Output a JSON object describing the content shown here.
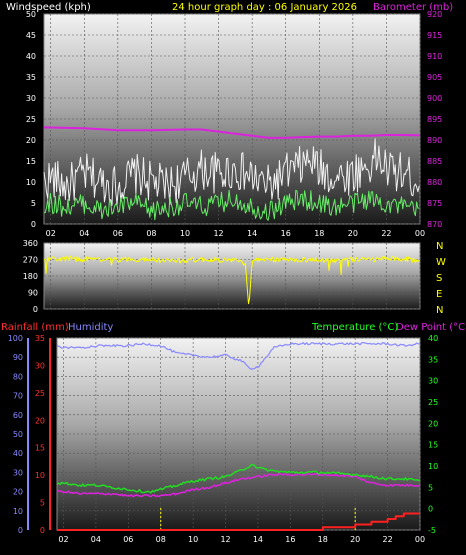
{
  "header": {
    "left_label": "Windspeed (kph)",
    "center_label": "24 hour graph day : 06 January 2026",
    "right_label": "Barometer (mb)"
  },
  "colors": {
    "wind_gust": "#f2f2f2",
    "wind_avg": "#66ee66",
    "barometer": "#dd22dd",
    "direction": "#ffff00",
    "rain": "#ff2020",
    "humidity": "#8888ff",
    "temperature": "#22dd22",
    "dewpoint": "#dd22dd",
    "axis_text_left": "#ffffff",
    "axis_text_rain": "#ff3030",
    "axis_text_hum": "#8888ff",
    "axis_text_temp": "#22ff22"
  },
  "x_axis": {
    "hours": [
      2,
      4,
      6,
      8,
      10,
      12,
      14,
      16,
      18,
      20,
      22,
      24
    ],
    "tick_labels": [
      "02",
      "04",
      "06",
      "08",
      "10",
      "12",
      "14",
      "16",
      "18",
      "20",
      "22",
      "00"
    ]
  },
  "chart_data": [
    {
      "type": "line",
      "name": "wind",
      "x_range": [
        1.6,
        24
      ],
      "y_left": {
        "ticks": [
          0,
          5,
          10,
          15,
          20,
          25,
          30,
          35,
          40,
          45,
          50
        ],
        "range": [
          0,
          50
        ]
      },
      "y_right": {
        "ticks": [
          870,
          875,
          880,
          885,
          890,
          895,
          900,
          905,
          910,
          915,
          920
        ],
        "range": [
          870,
          920
        ]
      },
      "series": [
        {
          "key": "gust",
          "axis": "left",
          "x": [
            1.6,
            2,
            3,
            4,
            5,
            6,
            7,
            8,
            9,
            10,
            11,
            12,
            13,
            14,
            15,
            16,
            17,
            17.5,
            18,
            19,
            20,
            21,
            21.5,
            22,
            23,
            24
          ],
          "y": [
            10,
            11,
            9,
            12,
            10,
            9,
            12,
            10,
            9,
            11,
            13,
            12,
            13,
            11,
            9,
            12,
            14,
            15,
            13,
            11,
            12,
            14,
            16,
            13,
            12,
            10
          ]
        },
        {
          "key": "average",
          "axis": "left",
          "x": [
            1.6,
            2,
            3,
            4,
            5,
            6,
            7,
            8,
            9,
            10,
            11,
            12,
            13,
            14,
            15,
            16,
            17,
            18,
            19,
            20,
            21,
            22,
            23,
            24
          ],
          "y": [
            4,
            5,
            4,
            5,
            3,
            4,
            5,
            3,
            4,
            5,
            4,
            5,
            6,
            4,
            3,
            5,
            6,
            5,
            4,
            5,
            6,
            5,
            4,
            3
          ]
        },
        {
          "key": "barometer",
          "axis": "right",
          "x": [
            1.6,
            4,
            6,
            8,
            10,
            11,
            12,
            13,
            14,
            15,
            16,
            17,
            18,
            19,
            20,
            21,
            22,
            23,
            24
          ],
          "y": [
            893,
            892.8,
            892.3,
            892.3,
            892.5,
            892.5,
            892,
            891.5,
            891,
            890.5,
            890.5,
            890.7,
            890.8,
            890.8,
            891,
            891,
            891.2,
            891.2,
            891.1
          ]
        }
      ]
    },
    {
      "type": "line",
      "name": "wind-direction",
      "x_range": [
        1.6,
        24
      ],
      "y_left": {
        "ticks": [
          0,
          90,
          180,
          270,
          360
        ],
        "range": [
          0,
          360
        ]
      },
      "compass": [
        "N",
        "W",
        "S",
        "E",
        "N"
      ],
      "series": [
        {
          "key": "direction",
          "x": [
            1.6,
            3,
            5,
            7,
            9,
            11,
            12,
            13,
            13.6,
            13.8,
            14,
            15,
            17,
            19,
            20,
            21,
            22,
            23,
            24
          ],
          "y": [
            270,
            275,
            268,
            272,
            262,
            270,
            268,
            265,
            250,
            5,
            262,
            268,
            270,
            265,
            270,
            268,
            275,
            270,
            265
          ]
        }
      ]
    },
    {
      "type": "line",
      "name": "rain-humidity-temperature",
      "labels": {
        "rain": "Rainfall (mm)",
        "humidity": "Humidity",
        "temperature": "Temperature (°C)",
        "dewpoint": "Dew Point (°C)"
      },
      "x_range": [
        1.6,
        24
      ],
      "y_humidity": {
        "ticks": [
          0,
          10,
          20,
          30,
          40,
          50,
          60,
          70,
          80,
          90,
          100
        ],
        "range": [
          0,
          100
        ]
      },
      "y_rain": {
        "ticks": [
          0,
          5,
          10,
          15,
          20,
          25,
          30,
          35
        ],
        "range": [
          0,
          35
        ]
      },
      "y_temp": {
        "ticks": [
          -5,
          0,
          5,
          10,
          15,
          20,
          25,
          30,
          35,
          40
        ],
        "range": [
          -5,
          40
        ]
      },
      "series": [
        {
          "key": "humidity",
          "axis": "humidity",
          "x": [
            1.6,
            2,
            3,
            4,
            5,
            6,
            7,
            8,
            9,
            10,
            11,
            12,
            13,
            13.5,
            14,
            15,
            16,
            17,
            18,
            19,
            20,
            21,
            22,
            23,
            24
          ],
          "y": [
            96,
            95,
            95,
            96,
            96,
            96,
            97,
            96,
            92,
            91,
            90,
            91,
            88,
            84,
            85,
            95,
            97,
            97,
            97,
            97,
            97,
            97,
            97,
            96,
            97
          ]
        },
        {
          "key": "rain",
          "axis": "rain",
          "x": [
            1.6,
            16,
            18,
            20,
            21,
            22,
            22.5,
            23,
            24
          ],
          "y": [
            0,
            0,
            0.5,
            1,
            1.5,
            2,
            2.5,
            3,
            3
          ]
        },
        {
          "key": "temperature",
          "axis": "temp",
          "x": [
            1.6,
            2,
            3,
            4,
            5,
            6,
            7,
            7.5,
            8,
            9,
            10,
            11,
            12,
            13,
            13.7,
            14,
            15,
            16,
            17,
            18,
            19,
            20,
            21,
            22,
            23,
            24
          ],
          "y": [
            6,
            6,
            5.5,
            5.5,
            5,
            4.5,
            4,
            4,
            4.5,
            5.5,
            6.5,
            7,
            7.5,
            9,
            10.5,
            9.5,
            8.8,
            8.5,
            8.5,
            8.5,
            8.2,
            8,
            7.5,
            7,
            7,
            6.5
          ]
        },
        {
          "key": "dewpoint",
          "axis": "temp",
          "x": [
            1.6,
            2,
            3,
            4,
            5,
            6,
            7,
            8,
            9,
            10,
            11,
            12,
            13,
            14,
            15,
            16,
            17,
            18,
            19,
            20,
            21,
            22,
            23,
            24
          ],
          "y": [
            4,
            4,
            3.5,
            3.5,
            3.5,
            3,
            3,
            3,
            3.5,
            4.5,
            5,
            6,
            7,
            7.5,
            8,
            8,
            8,
            8,
            7.8,
            7.5,
            6,
            5.5,
            5.5,
            5.5
          ]
        }
      ]
    }
  ]
}
